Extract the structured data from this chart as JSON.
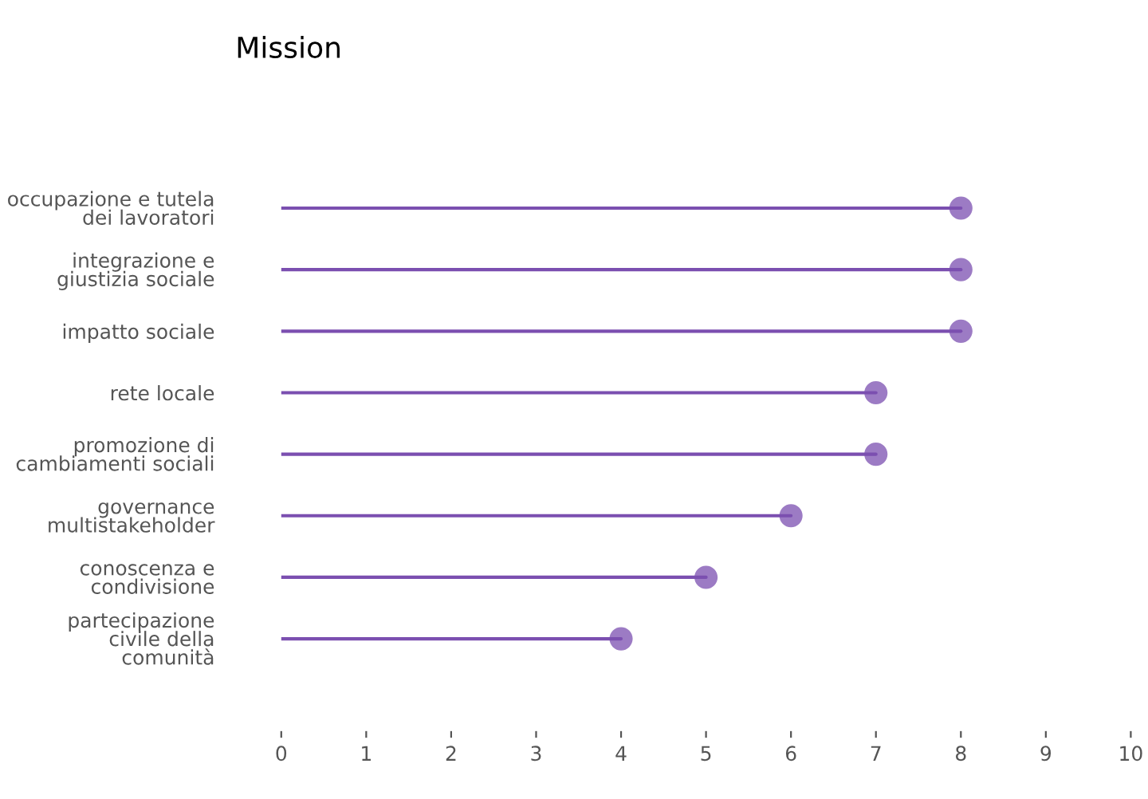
{
  "chart_data": {
    "type": "lollipop",
    "orientation": "horizontal",
    "title": "Mission",
    "categories": [
      "occupazione e tutela\ndei lavoratori",
      "integrazione e\ngiustizia sociale",
      "impatto sociale",
      "rete locale",
      "promozione di\ncambiamenti sociali",
      "governance\nmultistakeholder",
      "conoscenza e\ncondivisione",
      "partecipazione\ncivile della\ncomunità"
    ],
    "values": [
      8,
      8,
      8,
      7,
      7,
      6,
      5,
      4
    ],
    "color": "#7b4fb0",
    "marker": "circle",
    "grid": false,
    "legend": false,
    "xlim": [
      0,
      10
    ],
    "xticks": [
      0,
      1,
      2,
      3,
      4,
      5,
      6,
      7,
      8,
      9,
      10
    ]
  }
}
